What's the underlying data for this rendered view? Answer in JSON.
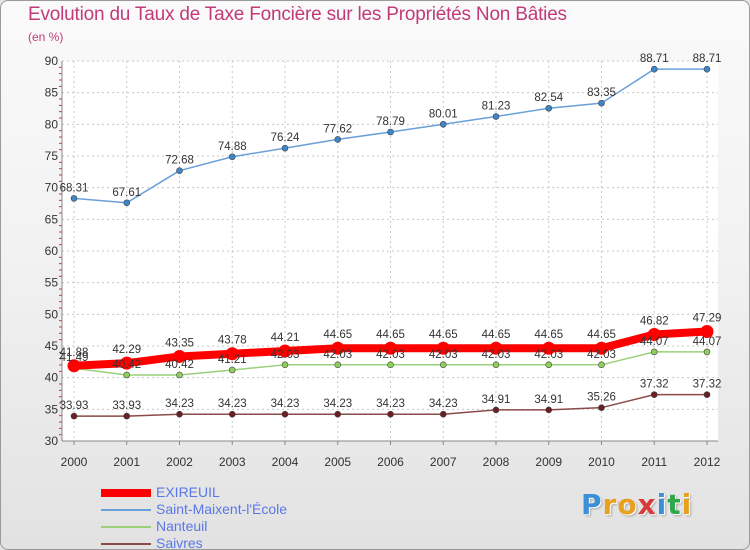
{
  "header": {
    "title": "Evolution du Taux de Taxe Foncière sur les Propriétés Non Bâties",
    "unit": "(en %)"
  },
  "brand": {
    "text": "Proxiti",
    "colors": [
      "#3a8fd8",
      "#e8a020",
      "#e8a020",
      "#d83a3a",
      "#3a8fd8",
      "#2ea84a",
      "#e8a020"
    ]
  },
  "chart_data": {
    "type": "line",
    "title": "Evolution du Taux de Taxe Foncière sur les Propriétés Non Bâties",
    "ylabel": "(en %)",
    "xlabel": "",
    "ylim": [
      30,
      90
    ],
    "yticks": [
      30,
      35,
      40,
      45,
      50,
      55,
      60,
      65,
      70,
      75,
      80,
      85,
      90
    ],
    "grid": true,
    "legend_position": "bottom-left",
    "x": [
      "2000",
      "2001",
      "2002",
      "2003",
      "2004",
      "2005",
      "2006",
      "2007",
      "2008",
      "2009",
      "2010",
      "2011",
      "2012"
    ],
    "series": [
      {
        "name": "Saint-Maixent-l'École",
        "color": "#6aa0d8",
        "marker": "#3f86c8",
        "style": "thin",
        "values": [
          68.31,
          67.61,
          72.68,
          74.88,
          76.24,
          77.62,
          78.79,
          80.01,
          81.23,
          82.54,
          83.35,
          88.71,
          88.71
        ],
        "labels": [
          "68.31",
          "67.61",
          "72.68",
          "74.88",
          "76.24",
          "77.62",
          "78.79",
          "80.01",
          "81.23",
          "82.54",
          "83.35",
          "88.71",
          "88.71"
        ]
      },
      {
        "name": "EXIREUIL",
        "color": "#ff0000",
        "marker": "#ff0000",
        "style": "thick",
        "values": [
          41.88,
          42.29,
          43.35,
          43.78,
          44.21,
          44.65,
          44.65,
          44.65,
          44.65,
          44.65,
          44.65,
          46.82,
          47.29
        ],
        "labels": [
          "41.88",
          "42.29",
          "43.35",
          "43.78",
          "44.21",
          "44.65",
          "44.65",
          "44.65",
          "44.65",
          "44.65",
          "44.65",
          "46.82",
          "47.29"
        ]
      },
      {
        "name": "Nanteuil",
        "color": "#9ad07a",
        "marker": "#8cd05a",
        "style": "thin",
        "values": [
          41.49,
          40.42,
          40.42,
          41.21,
          42.03,
          42.03,
          42.03,
          42.03,
          42.03,
          42.03,
          42.03,
          44.07,
          44.07
        ],
        "labels": [
          "41.49",
          "40.42",
          "40.42",
          "41.21",
          "42.03",
          "42.03",
          "42.03",
          "42.03",
          "42.03",
          "42.03",
          "42.03",
          "44.07",
          "44.07"
        ]
      },
      {
        "name": "Saivres",
        "color": "#8b4a4a",
        "marker": "#6b1f22",
        "style": "thin",
        "values": [
          33.93,
          33.93,
          34.23,
          34.23,
          34.23,
          34.23,
          34.23,
          34.23,
          34.91,
          34.91,
          35.26,
          37.32,
          37.32
        ],
        "labels": [
          "33.93",
          "33.93",
          "34.23",
          "34.23",
          "34.23",
          "34.23",
          "34.23",
          "34.23",
          "34.91",
          "34.91",
          "35.26",
          "37.32",
          "37.32"
        ]
      }
    ],
    "legend": [
      {
        "label": "EXIREUIL",
        "color": "#ff0000",
        "thick": true
      },
      {
        "label": "Saint-Maixent-l'École",
        "color": "#6aa0d8",
        "thick": false
      },
      {
        "label": "Nanteuil",
        "color": "#9ad07a",
        "thick": false
      },
      {
        "label": "Saivres",
        "color": "#8b4a4a",
        "thick": false
      }
    ]
  }
}
